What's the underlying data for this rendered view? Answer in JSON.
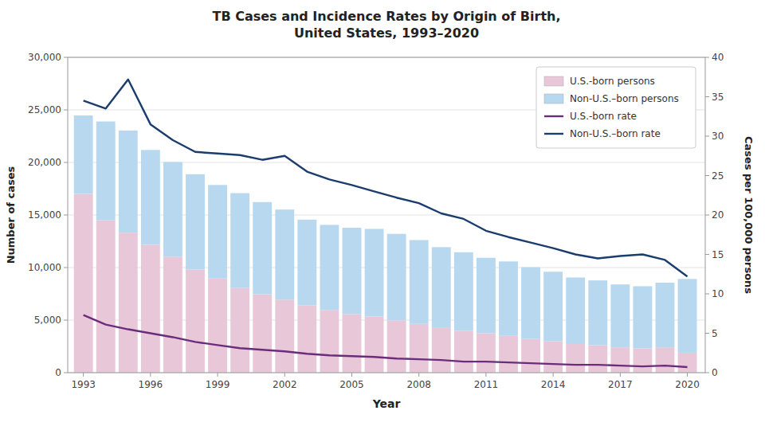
{
  "chart_data": {
    "type": "bar",
    "title": "TB Cases and Incidence Rates by Origin of Birth,\nUnited States, 1993–2020",
    "xlabel": "Year",
    "ylabel": "Number of cases",
    "y2label": "Cases per 100,000 persons",
    "stacked": true,
    "grid": true,
    "legend": "upper right",
    "x": [
      1993,
      1994,
      1995,
      1996,
      1997,
      1998,
      1999,
      2000,
      2001,
      2002,
      2003,
      2004,
      2005,
      2006,
      2007,
      2008,
      2009,
      2010,
      2011,
      2012,
      2013,
      2014,
      2015,
      2016,
      2017,
      2018,
      2019,
      2020
    ],
    "xlim": [
      1992.3,
      2020.8
    ],
    "xticks": [
      1993,
      1996,
      1999,
      2002,
      2005,
      2008,
      2011,
      2014,
      2017,
      2020
    ],
    "ylim": [
      0,
      30000
    ],
    "yticks": [
      0,
      {
        "value": 5000,
        "label": "5,000"
      },
      {
        "value": 10000,
        "label": "10,000"
      },
      {
        "value": 15000,
        "label": "15,000"
      },
      {
        "value": 20000,
        "label": "20,000"
      },
      {
        "value": 25000,
        "label": "25,000"
      },
      {
        "value": 30000,
        "label": "30,000"
      }
    ],
    "y2lim": [
      0,
      40
    ],
    "y2ticks": [
      0,
      5,
      10,
      15,
      20,
      25,
      30,
      35,
      40
    ],
    "series": [
      {
        "name": "U.S.-born persons",
        "type": "bar",
        "color": "#e8c8d8",
        "values": [
          17003,
          14502,
          13322,
          12163,
          11036,
          9803,
          8962,
          8053,
          7459,
          6945,
          6398,
          5963,
          5576,
          5351,
          4979,
          4634,
          4310,
          3985,
          3748,
          3501,
          3208,
          2990,
          2728,
          2613,
          2411,
          2318,
          2410,
          1899
        ]
      },
      {
        "name": "Non-U.S.–born persons",
        "type": "bar",
        "color": "#b8d8f0",
        "values": [
          7467,
          9397,
          9709,
          9023,
          9009,
          9078,
          8893,
          9029,
          8770,
          8573,
          8162,
          8099,
          8213,
          8329,
          8225,
          7982,
          7632,
          7470,
          7183,
          7082,
          6826,
          6612,
          6326,
          6167,
          5986,
          5904,
          6153,
          7015
        ]
      },
      {
        "name": "U.S.-born rate",
        "type": "line",
        "axis": "y2",
        "color": "#6b2d7b",
        "values": [
          7.3,
          6.1,
          5.5,
          5.0,
          4.5,
          3.9,
          3.5,
          3.1,
          2.9,
          2.7,
          2.4,
          2.2,
          2.1,
          2.0,
          1.8,
          1.7,
          1.6,
          1.4,
          1.4,
          1.3,
          1.2,
          1.1,
          1.0,
          1.0,
          0.9,
          0.8,
          0.9,
          0.7
        ]
      },
      {
        "name": "Non-U.S.–born rate",
        "type": "line",
        "axis": "y2",
        "color": "#1a3d6e",
        "values": [
          34.5,
          33.5,
          37.2,
          31.5,
          29.5,
          28.0,
          27.8,
          27.6,
          27.0,
          27.5,
          25.5,
          24.5,
          23.8,
          23.0,
          22.2,
          21.5,
          20.2,
          19.5,
          18.0,
          17.2,
          16.5,
          15.8,
          15.0,
          14.5,
          14.8,
          15.0,
          14.3,
          12.2
        ]
      }
    ]
  }
}
